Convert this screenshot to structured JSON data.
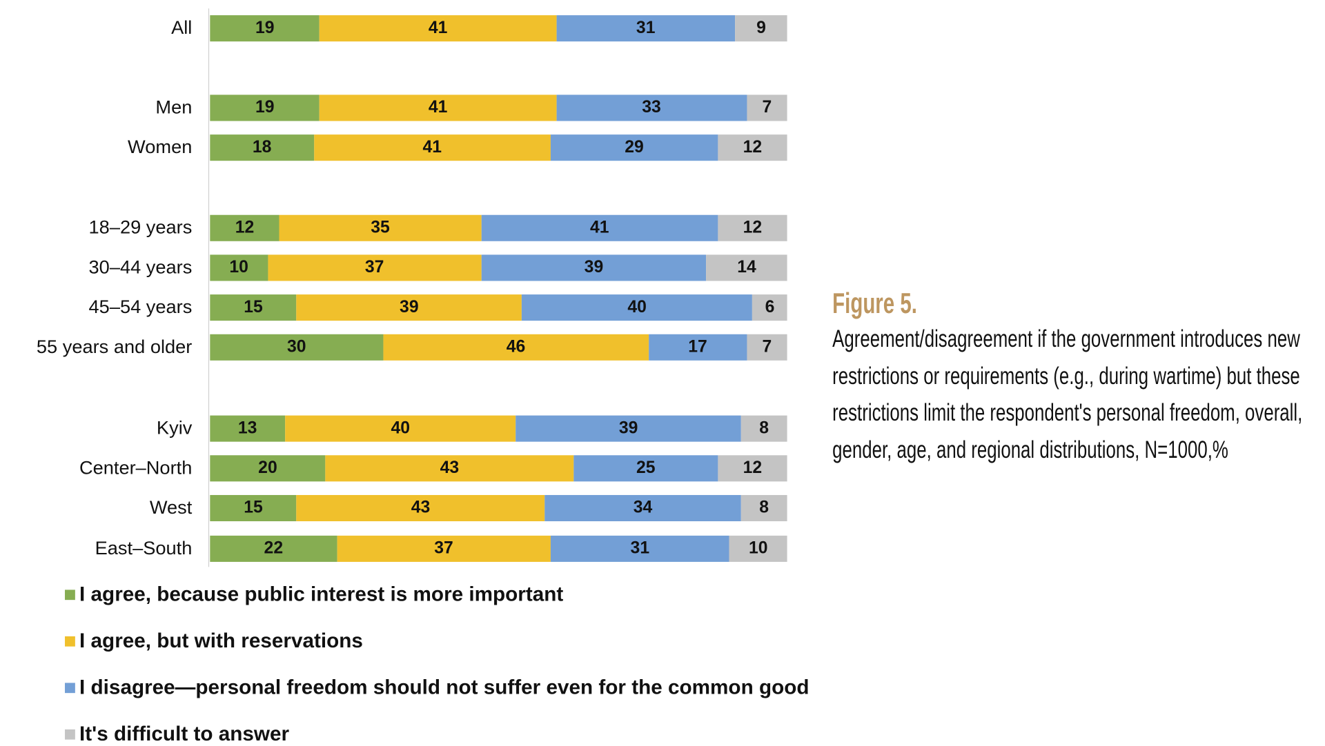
{
  "chart_data": {
    "type": "bar",
    "orientation": "horizontal",
    "stacked": true,
    "categories": [
      "All",
      "Men",
      "Women",
      "18–29 years",
      "30–44 years",
      "45–54 years",
      "55 years and older",
      "Kyiv",
      "Center–North",
      "West",
      "East–South"
    ],
    "series": [
      {
        "name": "I agree, because public interest is more important",
        "color": "#86ad52",
        "values": [
          19,
          19,
          18,
          12,
          10,
          15,
          30,
          13,
          20,
          15,
          22
        ]
      },
      {
        "name": "I agree, but with reservations",
        "color": "#f0c02c",
        "values": [
          41,
          41,
          41,
          35,
          37,
          39,
          46,
          40,
          43,
          43,
          37
        ]
      },
      {
        "name": "I disagree—personal freedom should not suffer even for the common good",
        "color": "#739fd6",
        "values": [
          31,
          33,
          29,
          41,
          39,
          40,
          17,
          39,
          25,
          34,
          31
        ]
      },
      {
        "name": "It's difficult to answer",
        "color": "#c4c4c4",
        "values": [
          9,
          7,
          12,
          12,
          14,
          6,
          7,
          8,
          12,
          8,
          10
        ]
      }
    ],
    "xlim": [
      0,
      100
    ],
    "legend": "bottom",
    "grid": false,
    "data_labels": true
  },
  "figure": {
    "title": "Figure 5.",
    "caption": "Agreement/disagreement if the government introduces new restrictions or requirements (e.g., during wartime) but these restrictions limit the respondent's personal freedom, overall, gender, age, and regional distributions, N=1000,%"
  }
}
